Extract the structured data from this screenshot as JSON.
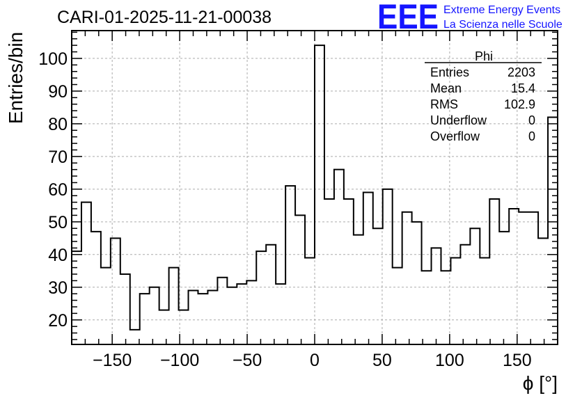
{
  "chart_data": {
    "type": "histogram",
    "title": "CARI-01-2025-11-21-00038",
    "xlabel": "ϕ [°]",
    "ylabel": "Entries/bin",
    "xlim": [
      -180,
      180
    ],
    "ylim": [
      12.5,
      108.5
    ],
    "grid": true,
    "bin_width": 7.2,
    "values": [
      41,
      56,
      47,
      36,
      45,
      34,
      17,
      28,
      30,
      23,
      36,
      23,
      29,
      28,
      29,
      33,
      30,
      31,
      32,
      41,
      43,
      31,
      61,
      52,
      39,
      104,
      57,
      66,
      57,
      46,
      59,
      48,
      60,
      36,
      53,
      50,
      35,
      42,
      35,
      39,
      43,
      48,
      39,
      57,
      47,
      54,
      53,
      53,
      45,
      82
    ],
    "x_ticks": [
      -150,
      -100,
      -50,
      0,
      50,
      100,
      150
    ],
    "x_tick_labels": [
      "−150",
      "−100",
      "−50",
      "0",
      "50",
      "100",
      "150"
    ],
    "y_ticks": [
      20,
      30,
      40,
      50,
      60,
      70,
      80,
      90,
      100
    ],
    "y_tick_labels": [
      "20",
      "30",
      "40",
      "50",
      "60",
      "70",
      "80",
      "90",
      "100"
    ],
    "stats_box": {
      "name": "Phi",
      "rows": [
        {
          "label": "Entries",
          "value": "2203"
        },
        {
          "label": "Mean",
          "value": "15.4"
        },
        {
          "label": "RMS",
          "value": "102.9"
        },
        {
          "label": "Underflow",
          "value": "0"
        },
        {
          "label": "Overflow",
          "value": "0"
        }
      ]
    }
  },
  "branding": {
    "logo": "EEE",
    "line1": "Extreme Energy Events",
    "line2": "La Scienza nelle Scuole",
    "color": "#1515ff"
  }
}
